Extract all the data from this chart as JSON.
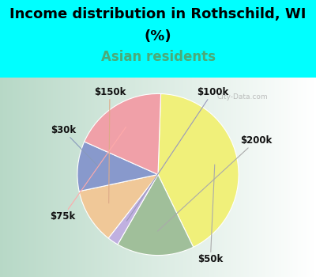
{
  "title_line1": "Income distribution in Rothschild, WI",
  "title_line2": "(%)",
  "subtitle": "Asian residents",
  "title_color": "#000000",
  "subtitle_color": "#4aab78",
  "bg_color": "#00ffff",
  "chart_bg_left": "#b8d8c8",
  "chart_bg_right": "#e8f4f0",
  "watermark": "City-Data.com",
  "slices": [
    {
      "label": "$50k",
      "value": 38,
      "color": "#f0f07a"
    },
    {
      "label": "$200k",
      "value": 14,
      "color": "#a0bf9a"
    },
    {
      "label": "$100k",
      "value": 2,
      "color": "#c0b0e0"
    },
    {
      "label": "$150k",
      "value": 10,
      "color": "#f0c898"
    },
    {
      "label": "$30k",
      "value": 9,
      "color": "#8899cc"
    },
    {
      "label": "$75k",
      "value": 17,
      "color": "#f0a0a8"
    }
  ],
  "startangle": 88,
  "label_fontsize": 8.5,
  "title_fontsize": 13,
  "subtitle_fontsize": 12
}
